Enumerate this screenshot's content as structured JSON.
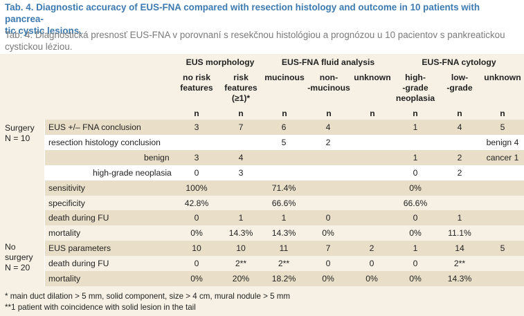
{
  "title": "Tab. 4. Diagnostic accuracy of EUS-FNA compared with resection histology and outcome in 10 patients with pancrea-tic cystic lesions.",
  "title_line1": "Tab. 4. Diagnostic accuracy of EUS-FNA compared with resection histology and outcome in 10 patients with pancrea-",
  "title_line2": "tic cystic lesions.",
  "subtitle_line1": "Tab. 4. Diagnostická presnosť EUS-FNA v porovnaní s resekčnou histológiou a prognózou u 10 pacientov s pankreatickou",
  "subtitle_line2": "cystickou léziou.",
  "groups": {
    "morph": "EUS morphology",
    "fluid": "EUS-FNA fluid analysis",
    "cyto": "EUS-FNA cytology"
  },
  "columns": {
    "c1": [
      "no risk",
      "features"
    ],
    "c2": [
      "risk",
      "features",
      "(≥1)*"
    ],
    "c3": [
      "mucinous"
    ],
    "c4": [
      "non-",
      "-mucinous"
    ],
    "c5": [
      "unknown"
    ],
    "c6": [
      "high-",
      "-grade",
      "neoplasia"
    ],
    "c7": [
      "low-",
      "-grade"
    ],
    "c8": [
      "unknown"
    ]
  },
  "n_label": "n",
  "surgery_label": [
    "Surgery",
    "N = 10"
  ],
  "nosurgery_label": [
    "No",
    "surgery",
    "N = 20"
  ],
  "rows": [
    {
      "label": "EUS +/– FNA conclusion",
      "v": [
        "3",
        "7",
        "6",
        "4",
        "",
        "1",
        "4",
        "5"
      ]
    },
    {
      "label": "resection histology conclusion",
      "v": [
        "",
        "",
        "5",
        "2",
        "",
        "",
        "",
        "benign 4"
      ]
    },
    {
      "label": "benign",
      "v": [
        "3",
        "4",
        "",
        "",
        "",
        "1",
        "2",
        "cancer 1"
      ]
    },
    {
      "label": "high-grade neoplasia",
      "v": [
        "0",
        "3",
        "",
        "",
        "",
        "0",
        "2",
        ""
      ]
    },
    {
      "label": "sensitivity",
      "v": [
        "100%",
        "",
        "71.4%",
        "",
        "",
        "0%",
        "",
        ""
      ]
    },
    {
      "label": "specificity",
      "v": [
        "42.8%",
        "",
        "66.6%",
        "",
        "",
        "66.6%",
        "",
        ""
      ]
    },
    {
      "label": "death during FU",
      "v": [
        "0",
        "1",
        "1",
        "0",
        "",
        "0",
        "1",
        ""
      ]
    },
    {
      "label": "mortality",
      "v": [
        "0%",
        "14.3%",
        "14.3%",
        "0%",
        "",
        "0%",
        "11.1%",
        ""
      ]
    },
    {
      "label": "EUS parameters",
      "v": [
        "10",
        "10",
        "11",
        "7",
        "2",
        "1",
        "14",
        "5"
      ]
    },
    {
      "label": "death during FU",
      "v": [
        "0",
        "2**",
        "2**",
        "0",
        "0",
        "0",
        "2**",
        ""
      ]
    },
    {
      "label": "mortality",
      "v": [
        "0%",
        "20%",
        "18.2%",
        "0%",
        "0%",
        "0%",
        "14.3%",
        ""
      ]
    }
  ],
  "footnotes": [
    "* main duct dilation > 5 mm, solid component, size > 4 cm, mural nodule > 5 mm",
    "**1 patient with coincidence with solid lesion in the tail"
  ]
}
